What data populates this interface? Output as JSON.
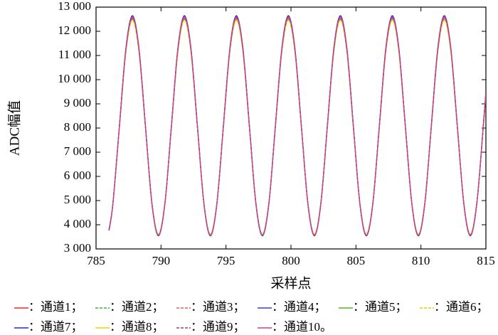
{
  "chart_data": {
    "type": "line",
    "x_label": "采样点",
    "y_label": "ADC幅值",
    "xlim": [
      785,
      815
    ],
    "xticks": [
      785,
      790,
      795,
      800,
      805,
      810,
      815
    ],
    "ylim": [
      3000,
      13000
    ],
    "yticks": [
      {
        "value": 3000,
        "label": "3 000"
      },
      {
        "value": 4000,
        "label": "4 000"
      },
      {
        "value": 5000,
        "label": "5 000"
      },
      {
        "value": 6000,
        "label": "6 000"
      },
      {
        "value": 7000,
        "label": "7 000"
      },
      {
        "value": 8000,
        "label": "8 000"
      },
      {
        "value": 9000,
        "label": "9 000"
      },
      {
        "value": 10000,
        "label": "10 000"
      },
      {
        "value": 11000,
        "label": "11 000"
      },
      {
        "value": 12000,
        "label": "12 000"
      },
      {
        "value": 13000,
        "label": "13 000"
      }
    ],
    "x": [
      786,
      786.3,
      786.8,
      787.3,
      787.8,
      788.3,
      788.8,
      789.3,
      789.8,
      790.3,
      790.8,
      791.3,
      791.8,
      792.3,
      792.8,
      793.3,
      793.8,
      794.3,
      794.8,
      795.3,
      795.8,
      796.3,
      796.8,
      797.3,
      797.8,
      798.3,
      798.8,
      799.3,
      799.8,
      800.3,
      800.8,
      801.3,
      801.8,
      802.3,
      802.8,
      803.3,
      803.8,
      804.3,
      804.8,
      805.3,
      805.8,
      806.3,
      806.8,
      807.3,
      807.8,
      808.3,
      808.8,
      809.3,
      809.8,
      810.3,
      810.8,
      811.3,
      811.8,
      812.3,
      812.8,
      813.3,
      813.8,
      814.3,
      814.8,
      815
    ],
    "series": [
      {
        "name": "：通道1；",
        "color": "#e8282a",
        "dash": false,
        "values": [
          3780,
          4877,
          8055,
          11233,
          12550,
          11233,
          8055,
          4877,
          3560,
          4877,
          8055,
          11233,
          12550,
          11233,
          8055,
          4877,
          3560,
          4877,
          8055,
          11233,
          12550,
          11233,
          8055,
          4877,
          3560,
          4877,
          8055,
          11233,
          12550,
          11233,
          8055,
          4877,
          3560,
          4877,
          8055,
          11233,
          12550,
          11233,
          8055,
          4877,
          3560,
          4877,
          8055,
          11233,
          12550,
          11233,
          8055,
          4877,
          3560,
          4877,
          8055,
          11233,
          12550,
          11233,
          8055,
          4877,
          3560,
          4877,
          8055,
          9444
        ]
      },
      {
        "name": "：通道2；",
        "color": "#3cb43c",
        "dash": true,
        "values": [
          3818,
          4904,
          8050,
          11196,
          12500,
          11196,
          8050,
          4904,
          3600,
          4904,
          8050,
          11196,
          12500,
          11196,
          8050,
          4904,
          3600,
          4904,
          8050,
          11196,
          12500,
          11196,
          8050,
          4904,
          3600,
          4904,
          8050,
          11196,
          12500,
          11196,
          8050,
          4904,
          3600,
          4904,
          8050,
          11196,
          12500,
          11196,
          8050,
          4904,
          3600,
          4904,
          8050,
          11196,
          12500,
          11196,
          8050,
          4904,
          3600,
          4904,
          8050,
          11196,
          12500,
          11196,
          8050,
          4904,
          3600,
          4904,
          8050,
          9425
        ]
      },
      {
        "name": "：通道3；",
        "color": "#e06060",
        "dash": true,
        "values": [
          3799,
          4890,
          8050,
          11210,
          12520,
          11210,
          8050,
          4890,
          3580,
          4890,
          8050,
          11210,
          12520,
          11210,
          8050,
          4890,
          3580,
          4890,
          8050,
          11210,
          12520,
          11210,
          8050,
          4890,
          3580,
          4890,
          8050,
          11210,
          12520,
          11210,
          8050,
          4890,
          3580,
          4890,
          8050,
          11210,
          12520,
          11210,
          8050,
          4890,
          3580,
          4890,
          8050,
          11210,
          12520,
          11210,
          8050,
          4890,
          3580,
          4890,
          8050,
          11210,
          12520,
          11210,
          8050,
          4890,
          3580,
          4890,
          8050,
          9431
        ]
      },
      {
        "name": "：通道4；",
        "color": "#3c3cc8",
        "dash": false,
        "values": [
          3763,
          4875,
          8095,
          11315,
          12650,
          11315,
          8095,
          4875,
          3540,
          4875,
          8095,
          11315,
          12650,
          11315,
          8095,
          4875,
          3540,
          4875,
          8095,
          11315,
          12650,
          11315,
          8095,
          4875,
          3540,
          4875,
          8095,
          11315,
          12650,
          11315,
          8095,
          4875,
          3540,
          4875,
          8095,
          11315,
          12650,
          11315,
          8095,
          4875,
          3540,
          4875,
          8095,
          11315,
          12650,
          11315,
          8095,
          4875,
          3540,
          4875,
          8095,
          11315,
          12650,
          11315,
          8095,
          4875,
          3540,
          4875,
          8095,
          9502
        ]
      },
      {
        "name": "：通道5；",
        "color": "#50b428",
        "dash": false,
        "values": [
          3837,
          4918,
          8050,
          11182,
          12480,
          11182,
          8050,
          4918,
          3620,
          4918,
          8050,
          11182,
          12480,
          11182,
          8050,
          4918,
          3620,
          4918,
          8050,
          11182,
          12480,
          11182,
          8050,
          4918,
          3620,
          4918,
          8050,
          11182,
          12480,
          11182,
          8050,
          4918,
          3620,
          4918,
          8050,
          11182,
          12480,
          11182,
          8050,
          4918,
          3620,
          4918,
          8050,
          11182,
          12480,
          11182,
          8050,
          4918,
          3620,
          4918,
          8050,
          11182,
          12480,
          11182,
          8050,
          4918,
          3620,
          4918,
          8050,
          9419
        ]
      },
      {
        "name": "：通道6；",
        "color": "#f0c800",
        "dash": true,
        "values": [
          3827,
          4905,
          8030,
          11155,
          12450,
          11155,
          8030,
          4905,
          3610,
          4905,
          8030,
          11155,
          12450,
          11155,
          8030,
          4905,
          3610,
          4905,
          8030,
          11155,
          12450,
          11155,
          8030,
          4905,
          3610,
          4905,
          8030,
          11155,
          12450,
          11155,
          8030,
          4905,
          3610,
          4905,
          8030,
          11155,
          12450,
          11155,
          8030,
          4905,
          3610,
          4905,
          8030,
          11155,
          12450,
          11155,
          8030,
          4905,
          3610,
          4905,
          8030,
          11155,
          12450,
          11155,
          8030,
          4905,
          3610,
          4905,
          8030,
          9396
        ]
      },
      {
        "name": "：通道7；",
        "color": "#2828d0",
        "dash": false,
        "values": [
          3772,
          4879,
          8085,
          11291,
          12620,
          11291,
          8085,
          4879,
          3550,
          4879,
          8085,
          11291,
          12620,
          11291,
          8085,
          4879,
          3550,
          4879,
          8085,
          11291,
          12620,
          11291,
          8085,
          4879,
          3550,
          4879,
          8085,
          11291,
          12620,
          11291,
          8085,
          4879,
          3550,
          4879,
          8085,
          11291,
          12620,
          11291,
          8085,
          4879,
          3550,
          4879,
          8085,
          11291,
          12620,
          11291,
          8085,
          4879,
          3550,
          4879,
          8085,
          11291,
          12620,
          11291,
          8085,
          4879,
          3550,
          4879,
          8085,
          9486
        ]
      },
      {
        "name": "：通道8；",
        "color": "#f0d000",
        "dash": false,
        "values": [
          3817,
          4898,
          8030,
          11162,
          12460,
          11162,
          8030,
          4898,
          3600,
          4898,
          8030,
          11162,
          12460,
          11162,
          8030,
          4898,
          3600,
          4898,
          8030,
          11162,
          12460,
          11162,
          8030,
          4898,
          3600,
          4898,
          8030,
          11162,
          12460,
          11162,
          8030,
          4898,
          3600,
          4898,
          8030,
          11162,
          12460,
          11162,
          8030,
          4898,
          3600,
          4898,
          8030,
          11162,
          12460,
          11162,
          8030,
          4898,
          3600,
          4898,
          8030,
          11162,
          12460,
          11162,
          8030,
          4898,
          3600,
          4898,
          8030,
          9399
        ]
      },
      {
        "name": "：通道9；",
        "color": "#a04080",
        "dash": true,
        "values": [
          3790,
          4887,
          8065,
          11243,
          12560,
          11243,
          8065,
          4887,
          3570,
          4887,
          8065,
          11243,
          12560,
          11243,
          8065,
          4887,
          3570,
          4887,
          8065,
          11243,
          12560,
          11243,
          8065,
          4887,
          3570,
          4887,
          8065,
          11243,
          12560,
          11243,
          8065,
          4887,
          3570,
          4887,
          8065,
          11243,
          12560,
          11243,
          8065,
          4887,
          3570,
          4887,
          8065,
          11243,
          12560,
          11243,
          8065,
          4887,
          3570,
          4887,
          8065,
          11243,
          12560,
          11243,
          8065,
          4887,
          3570,
          4887,
          8065,
          9454
        ]
      },
      {
        "name": "：通道10。",
        "color": "#c83c9c",
        "dash": false,
        "values": [
          3781,
          4884,
          8080,
          11276,
          12600,
          11276,
          8080,
          4884,
          3560,
          4884,
          8080,
          11276,
          12600,
          11276,
          8080,
          4884,
          3560,
          4884,
          8080,
          11276,
          12600,
          11276,
          8080,
          4884,
          3560,
          4884,
          8080,
          11276,
          12600,
          11276,
          8080,
          4884,
          3560,
          4884,
          8080,
          11276,
          12600,
          11276,
          8080,
          4884,
          3560,
          4884,
          8080,
          11276,
          12600,
          11276,
          8080,
          4884,
          3560,
          4884,
          8080,
          11276,
          12600,
          11276,
          8080,
          4884,
          3560,
          4884,
          8080,
          9477
        ]
      }
    ]
  }
}
